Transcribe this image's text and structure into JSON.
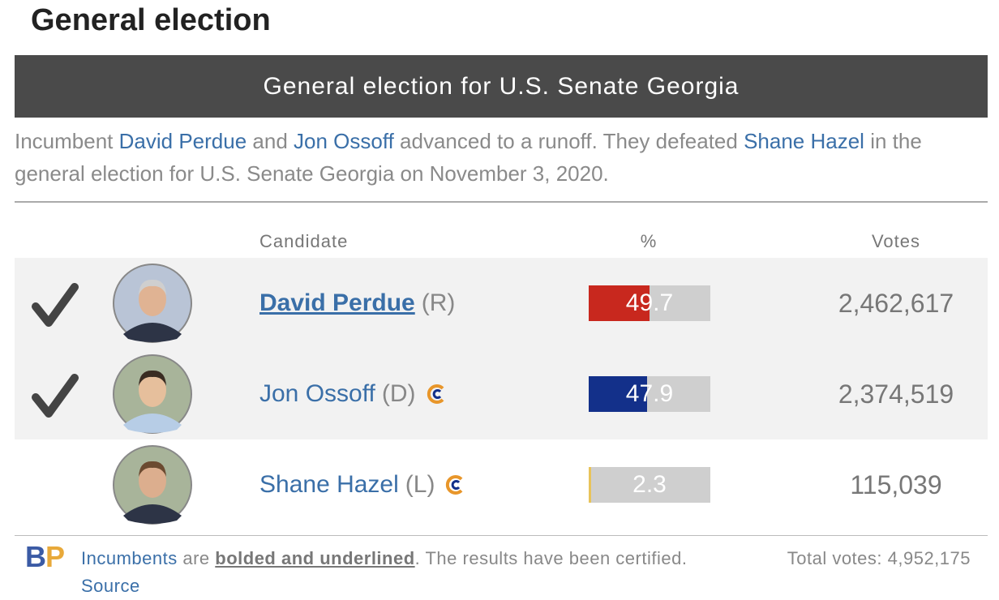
{
  "header": {
    "title": "General election"
  },
  "banner": {
    "title": "General election for U.S. Senate Georgia"
  },
  "summary": [
    {
      "text": "Incumbent ",
      "link": false
    },
    {
      "text": "David Perdue",
      "link": true
    },
    {
      "text": " and ",
      "link": false
    },
    {
      "text": "Jon Ossoff",
      "link": true
    },
    {
      "text": " advanced to a runoff. They defeated ",
      "link": false
    },
    {
      "text": "Shane Hazel",
      "link": true
    },
    {
      "text": " in the general election for U.S. Senate Georgia on November 3, 2020.",
      "link": false
    }
  ],
  "table": {
    "columns": [
      "Candidate",
      "%",
      "Votes"
    ],
    "bar_range": [
      0,
      100
    ],
    "rows": [
      {
        "winner": true,
        "incumbent": true,
        "name": "David Perdue",
        "party": "(R)",
        "survey_icon": false,
        "percent": 49.7,
        "votes": "2,462,617",
        "color": "#c8281e"
      },
      {
        "winner": true,
        "incumbent": false,
        "name": "Jon Ossoff",
        "party": "(D)",
        "survey_icon": true,
        "percent": 47.9,
        "votes": "2,374,519",
        "color": "#13308a"
      },
      {
        "winner": false,
        "incumbent": false,
        "name": "Shane Hazel",
        "party": "(L)",
        "survey_icon": true,
        "percent": 2.3,
        "votes": "115,039",
        "color": "#e8c35a"
      }
    ]
  },
  "footer": {
    "logo": [
      "B",
      "P"
    ],
    "note": [
      {
        "text": "Incumbents",
        "style": "link"
      },
      {
        "text": " are ",
        "style": "plain"
      },
      {
        "text": "bolded and underlined",
        "style": "emphasis"
      },
      {
        "text": ". The results have been certified. ",
        "style": "plain"
      },
      {
        "text": "Source",
        "style": "link"
      }
    ],
    "total": "Total votes: 4,952,175"
  }
}
